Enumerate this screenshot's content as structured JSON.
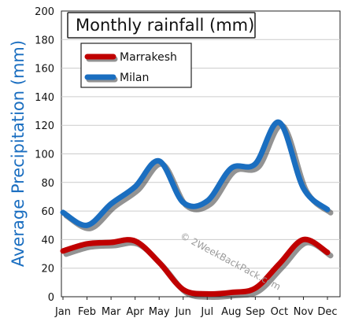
{
  "chart_data": {
    "type": "line",
    "title": "Monthly rainfall (mm)",
    "ylabel": "Average Precipitation (mm)",
    "xlabel": "",
    "categories": [
      "Jan",
      "Feb",
      "Mar",
      "Apr",
      "May",
      "Jun",
      "Jul",
      "Aug",
      "Sep",
      "Oct",
      "Nov",
      "Dec"
    ],
    "ylim": [
      0,
      200
    ],
    "yticks": [
      0,
      20,
      40,
      60,
      80,
      100,
      120,
      140,
      160,
      180,
      200
    ],
    "grid": true,
    "legend_position": "top-left",
    "series": [
      {
        "name": "Marrakesh",
        "color": "#c00000",
        "values": [
          32,
          37,
          38,
          39,
          24,
          5,
          2,
          3,
          6,
          23,
          40,
          31
        ]
      },
      {
        "name": "Milan",
        "color": "#1a6ec0",
        "values": [
          59,
          50,
          65,
          77,
          95,
          66,
          67,
          90,
          93,
          122,
          76,
          61
        ]
      }
    ],
    "watermark": "© 2WeekBackPack.com"
  }
}
